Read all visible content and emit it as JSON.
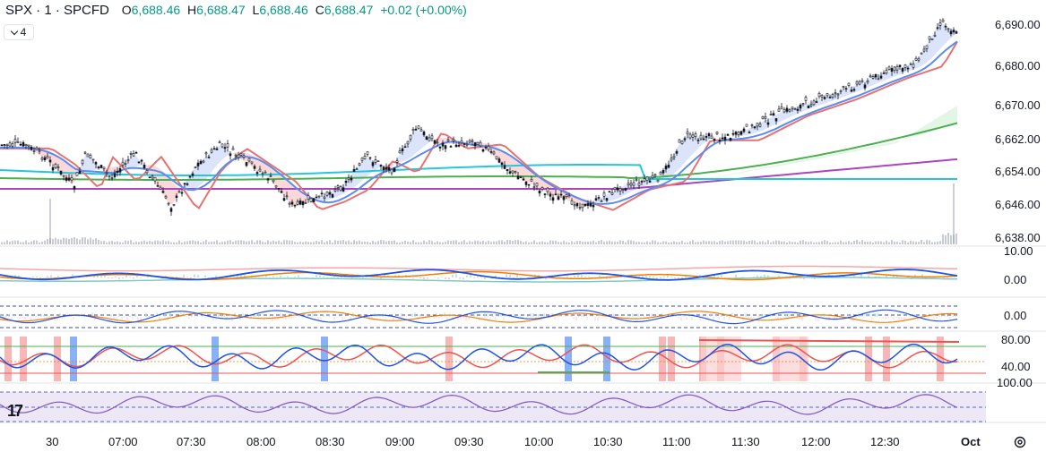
{
  "legend": {
    "symbol": "SPX · 1 · SPCFD",
    "open_key": "O",
    "open": "6,688.46",
    "high_key": "H",
    "high": "6,688.47",
    "low_key": "L",
    "low": "6,688.46",
    "close_key": "C",
    "close": "6,688.47",
    "change": "+0.02 (+0.00%)"
  },
  "collapse_count": "4",
  "price_axis": [
    "6,690.00",
    "6,680.00",
    "6,670.00",
    "6,662.00",
    "6,654.00",
    "6,646.00",
    "6,638.00"
  ],
  "pane_axes": {
    "pane1": [
      "10.00",
      "0.00"
    ],
    "pane2": [
      "0.00"
    ],
    "pane3": [
      "80.00",
      "40.00"
    ],
    "pane4": [
      "100.00"
    ]
  },
  "time_axis": [
    "30",
    "07:00",
    "07:30",
    "08:00",
    "08:30",
    "09:00",
    "09:30",
    "10:00",
    "10:30",
    "11:00",
    "11:30",
    "12:00",
    "12:30",
    "Oct"
  ],
  "logo": "17",
  "colors": {
    "up": "#089981",
    "candle": "#131722",
    "ma_purple": "#ab47bc",
    "ma_green": "#4caf50",
    "ma_teal": "#26c6da",
    "ma_blue": "#5b8def",
    "cloud_blue": "#dbe4fb",
    "cloud_red": "#fbd9d9",
    "stoch_red": "#ef5350",
    "stoch_blue": "#5b8def",
    "rsi": "#7e57c2"
  },
  "chart_data": {
    "type": "candlestick",
    "symbol": "SPX",
    "interval": "1",
    "x_ticks": [
      "30",
      "07:00",
      "07:30",
      "08:00",
      "08:30",
      "09:00",
      "09:30",
      "10:00",
      "10:30",
      "11:00",
      "11:30",
      "12:00",
      "12:30",
      "Oct"
    ],
    "y_ticks": [
      6638,
      6646,
      6654,
      6662,
      6670,
      6680,
      6690
    ],
    "ylim": [
      6636,
      6692
    ],
    "close_series": [
      {
        "t": "06:40",
        "y": 6660
      },
      {
        "t": "06:50",
        "y": 6656
      },
      {
        "t": "07:00",
        "y": 6650
      },
      {
        "t": "07:05",
        "y": 6658
      },
      {
        "t": "07:15",
        "y": 6652
      },
      {
        "t": "07:25",
        "y": 6658
      },
      {
        "t": "07:40",
        "y": 6645
      },
      {
        "t": "07:50",
        "y": 6655
      },
      {
        "t": "08:00",
        "y": 6660
      },
      {
        "t": "08:10",
        "y": 6656
      },
      {
        "t": "08:20",
        "y": 6652
      },
      {
        "t": "08:30",
        "y": 6645
      },
      {
        "t": "08:40",
        "y": 6647
      },
      {
        "t": "08:50",
        "y": 6650
      },
      {
        "t": "09:00",
        "y": 6657
      },
      {
        "t": "09:10",
        "y": 6654
      },
      {
        "t": "09:20",
        "y": 6664
      },
      {
        "t": "09:30",
        "y": 6660
      },
      {
        "t": "09:45",
        "y": 6661
      },
      {
        "t": "10:00",
        "y": 6653
      },
      {
        "t": "10:15",
        "y": 6648
      },
      {
        "t": "10:30",
        "y": 6645
      },
      {
        "t": "10:45",
        "y": 6650
      },
      {
        "t": "11:00",
        "y": 6652
      },
      {
        "t": "11:10",
        "y": 6662
      },
      {
        "t": "11:30",
        "y": 6662
      },
      {
        "t": "11:50",
        "y": 6668
      },
      {
        "t": "12:10",
        "y": 6672
      },
      {
        "t": "12:30",
        "y": 6677
      },
      {
        "t": "12:45",
        "y": 6680
      },
      {
        "t": "12:55",
        "y": 6690
      },
      {
        "t": "13:00",
        "y": 6688
      }
    ],
    "moving_averages": [
      {
        "color": "#ab47bc",
        "start": 6652,
        "end": 6657
      },
      {
        "color": "#4caf50",
        "start": 6657,
        "end": 6666
      },
      {
        "color": "#26c6da",
        "start": 6657,
        "end": 6654
      }
    ]
  }
}
